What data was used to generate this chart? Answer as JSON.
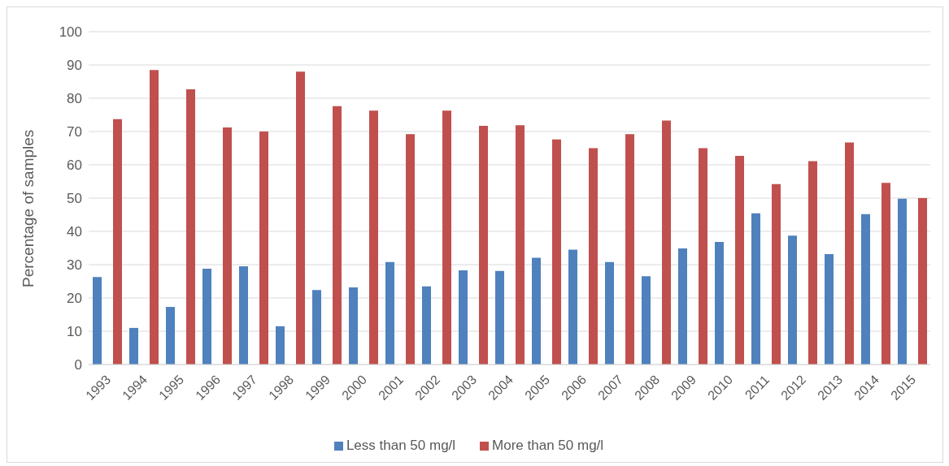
{
  "chart_data": {
    "type": "bar",
    "ylabel": "Percentage of samples",
    "categories": [
      "1993",
      "1994",
      "1995",
      "1996",
      "1997",
      "1998",
      "1999",
      "2000",
      "2001",
      "2002",
      "2003",
      "2004",
      "2005",
      "2006",
      "2007",
      "2008",
      "2009",
      "2010",
      "2011",
      "2012",
      "2013",
      "2014",
      "2015"
    ],
    "series": [
      {
        "name": "Less than 50 mg/l",
        "color": "#4f81bd",
        "values": [
          26.3,
          11,
          17.3,
          28.8,
          29.5,
          11.5,
          22.4,
          23.2,
          30.8,
          23.5,
          28.3,
          28.1,
          32.1,
          34.5,
          30.8,
          26.5,
          34.9,
          36.8,
          45.4,
          38.7,
          33.2,
          45.2,
          49.8
        ]
      },
      {
        "name": "More than 50 mg/l",
        "color": "#c0504d",
        "values": [
          73.7,
          88.5,
          82.7,
          71.2,
          70,
          88,
          77.6,
          76.3,
          69.2,
          76.3,
          71.7,
          71.9,
          67.6,
          65,
          69.2,
          73.3,
          65,
          62.7,
          54.2,
          61.1,
          66.7,
          54.6,
          50
        ]
      }
    ],
    "ylim": [
      0,
      100
    ],
    "yticks": [
      0,
      10,
      20,
      30,
      40,
      50,
      60,
      70,
      80,
      90,
      100
    ],
    "grid": "y",
    "legend": "bottom"
  }
}
